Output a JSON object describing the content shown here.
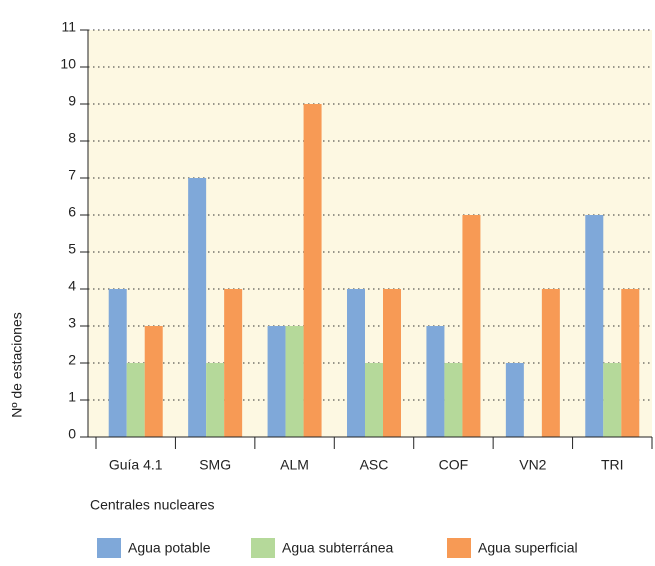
{
  "chart_data": {
    "type": "bar",
    "categories": [
      "Guía 4.1",
      "SMG",
      "ALM",
      "ASC",
      "COF",
      "VN2",
      "TRI"
    ],
    "series": [
      {
        "name": "Agua potable",
        "color": "#7fa8d9",
        "values": [
          4,
          7,
          3,
          4,
          3,
          2,
          6
        ]
      },
      {
        "name": "Agua subterránea",
        "color": "#b5d99a",
        "values": [
          2,
          2,
          3,
          2,
          2,
          0,
          2
        ]
      },
      {
        "name": "Agua superficial",
        "color": "#f79a55",
        "values": [
          3,
          4,
          9,
          4,
          6,
          4,
          4
        ]
      }
    ],
    "ylabel": "Nº de estaciones",
    "xlabel": "Centrales nucleares",
    "ylim": [
      0,
      11
    ],
    "yticks": [
      0,
      1,
      2,
      3,
      4,
      5,
      6,
      7,
      8,
      9,
      10,
      11
    ],
    "grid": true,
    "legend": "bottom"
  }
}
